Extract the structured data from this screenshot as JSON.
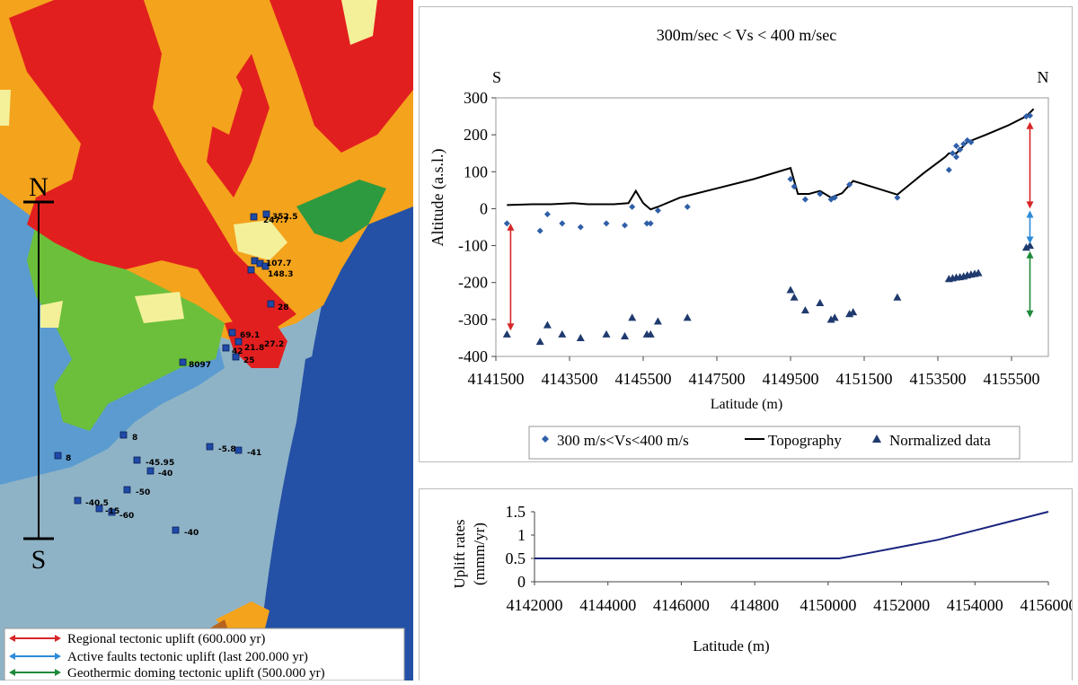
{
  "map": {
    "compass_north": "N",
    "compass_south": "S",
    "station_labels": [
      {
        "id": "s1",
        "text": "352.5"
      },
      {
        "id": "s2",
        "text": "247.7"
      },
      {
        "id": "s3",
        "text": "107.7"
      },
      {
        "id": "s4",
        "text": "148.3"
      },
      {
        "id": "s5",
        "text": "28"
      },
      {
        "id": "s6",
        "text": "69.1"
      },
      {
        "id": "s7",
        "text": "27.2"
      },
      {
        "id": "s8",
        "text": "21.8"
      },
      {
        "id": "s9",
        "text": "42"
      },
      {
        "id": "s10",
        "text": "25"
      },
      {
        "id": "s11",
        "text": "8097"
      },
      {
        "id": "s12",
        "text": "8"
      },
      {
        "id": "s13",
        "text": "8"
      },
      {
        "id": "s14",
        "text": "-5.8"
      },
      {
        "id": "s15",
        "text": "-41"
      },
      {
        "id": "s16",
        "text": "-45.95"
      },
      {
        "id": "s17",
        "text": "-40"
      },
      {
        "id": "s18",
        "text": "-50"
      },
      {
        "id": "s19",
        "text": "-40.5"
      },
      {
        "id": "s20",
        "text": "-15"
      },
      {
        "id": "s21",
        "text": "-60"
      },
      {
        "id": "s22",
        "text": "-40"
      }
    ],
    "legend": [
      {
        "label": "Regional tectonic uplift (600.000 yr)",
        "color": "#d62728"
      },
      {
        "label": "Active faults tectonic uplift (last 200.000 yr)",
        "color": "#2e8bd8"
      },
      {
        "label": "Geothermic doming tectonic uplift (500.000 yr)",
        "color": "#1f8a3a"
      }
    ],
    "colors": {
      "sea": "#8fb3c6",
      "deep_sea": "#2451a6",
      "red": "#e21f1f",
      "orange": "#f4a31c",
      "blue_unit": "#5b9bd0",
      "green": "#6cbf3a",
      "pale": "#f4f09a",
      "station": "#1f4aa8"
    }
  },
  "chart_data": [
    {
      "type": "scatter",
      "title": "300m/sec < Vs < 400 m/sec",
      "corner_left": "S",
      "corner_right": "N",
      "xlabel": "Latitude (m)",
      "ylabel": "Altitude (a.s.l.)",
      "xlim": [
        4141500,
        4156500
      ],
      "ylim": [
        -400,
        300
      ],
      "xticks": [
        4141500,
        4143500,
        4145500,
        4147500,
        4149500,
        4151500,
        4153500,
        4155500
      ],
      "yticks": [
        -400,
        -300,
        -200,
        -100,
        0,
        100,
        200,
        300
      ],
      "series": [
        {
          "name": "300 m/s<Vs<400 m/s",
          "marker": "diamond",
          "color": "#2f5fa8",
          "points": [
            [
              4141800,
              -40
            ],
            [
              4142700,
              -60
            ],
            [
              4142900,
              -15
            ],
            [
              4143300,
              -40
            ],
            [
              4143800,
              -50
            ],
            [
              4144500,
              -40
            ],
            [
              4145000,
              -45
            ],
            [
              4145200,
              5
            ],
            [
              4145600,
              -40
            ],
            [
              4145700,
              -40
            ],
            [
              4145900,
              -5
            ],
            [
              4146700,
              5
            ],
            [
              4149500,
              80
            ],
            [
              4149600,
              60
            ],
            [
              4149900,
              25
            ],
            [
              4150300,
              40
            ],
            [
              4150600,
              25
            ],
            [
              4150700,
              30
            ],
            [
              4151100,
              65
            ],
            [
              4152400,
              30
            ],
            [
              4153800,
              105
            ],
            [
              4153900,
              150
            ],
            [
              4154000,
              170
            ],
            [
              4154100,
              160
            ],
            [
              4154200,
              175
            ],
            [
              4154300,
              185
            ],
            [
              4154400,
              180
            ],
            [
              4154000,
              140
            ],
            [
              4155900,
              250
            ],
            [
              4156000,
              252
            ]
          ]
        },
        {
          "name": "Topography",
          "marker": "line",
          "color": "#000000",
          "points": [
            [
              4141800,
              10
            ],
            [
              4142500,
              12
            ],
            [
              4143000,
              12
            ],
            [
              4143600,
              15
            ],
            [
              4144000,
              12
            ],
            [
              4144700,
              12
            ],
            [
              4145100,
              15
            ],
            [
              4145300,
              48
            ],
            [
              4145500,
              15
            ],
            [
              4145700,
              -2
            ],
            [
              4145900,
              5
            ],
            [
              4146500,
              30
            ],
            [
              4147500,
              55
            ],
            [
              4148500,
              80
            ],
            [
              4149500,
              110
            ],
            [
              4149700,
              40
            ],
            [
              4150000,
              40
            ],
            [
              4150300,
              48
            ],
            [
              4150600,
              30
            ],
            [
              4150900,
              42
            ],
            [
              4151200,
              75
            ],
            [
              4152400,
              38
            ],
            [
              4153100,
              95
            ],
            [
              4153700,
              140
            ],
            [
              4153800,
              150
            ],
            [
              4154000,
              150
            ],
            [
              4154300,
              180
            ],
            [
              4154800,
              200
            ],
            [
              4155400,
              225
            ],
            [
              4155900,
              250
            ],
            [
              4156100,
              270
            ]
          ]
        },
        {
          "name": "Normalized data",
          "marker": "triangle",
          "color": "#1f3a6e",
          "points": [
            [
              4141800,
              -340
            ],
            [
              4142700,
              -360
            ],
            [
              4142900,
              -315
            ],
            [
              4143300,
              -340
            ],
            [
              4143800,
              -350
            ],
            [
              4144500,
              -340
            ],
            [
              4145000,
              -345
            ],
            [
              4145200,
              -295
            ],
            [
              4145600,
              -340
            ],
            [
              4145700,
              -340
            ],
            [
              4145900,
              -305
            ],
            [
              4146700,
              -295
            ],
            [
              4149500,
              -220
            ],
            [
              4149600,
              -240
            ],
            [
              4149900,
              -275
            ],
            [
              4150300,
              -255
            ],
            [
              4150600,
              -300
            ],
            [
              4150700,
              -295
            ],
            [
              4151100,
              -285
            ],
            [
              4151200,
              -280
            ],
            [
              4152400,
              -240
            ],
            [
              4153800,
              -190
            ],
            [
              4153900,
              -188
            ],
            [
              4154000,
              -186
            ],
            [
              4154100,
              -185
            ],
            [
              4154200,
              -183
            ],
            [
              4154300,
              -180
            ],
            [
              4154400,
              -178
            ],
            [
              4154500,
              -176
            ],
            [
              4154600,
              -174
            ],
            [
              4155900,
              -105
            ],
            [
              4156000,
              -100
            ]
          ]
        }
      ],
      "uplift_arrows": [
        {
          "color": "#d62728",
          "lat": 4141900,
          "from": -40,
          "to": -330
        },
        {
          "color": "#d62728",
          "lat": 4156000,
          "from": 235,
          "to": 0
        },
        {
          "color": "#2e8bd8",
          "lat": 4156000,
          "from": -5,
          "to": -95
        },
        {
          "color": "#1f8a3a",
          "lat": 4156000,
          "from": -115,
          "to": -295
        }
      ]
    },
    {
      "type": "line",
      "title": "",
      "xlabel": "Latitude (m)",
      "ylabel_lines": [
        "Uplift rates",
        "(mmm/yr)"
      ],
      "xtick_labels": [
        "4142000",
        "4144000",
        "4146000",
        "414800",
        "4150000",
        "4152000",
        "4154000",
        "4156000"
      ],
      "yticks": [
        0,
        0.5,
        1,
        1.5
      ],
      "ylim": [
        0,
        1.5
      ],
      "color": "#1a237e",
      "x": [
        4142000,
        4144000,
        4146000,
        4148000,
        4150000,
        4150300,
        4151000,
        4152000,
        4153000,
        4154000,
        4155000,
        4156000
      ],
      "y": [
        0.5,
        0.5,
        0.5,
        0.5,
        0.5,
        0.5,
        0.6,
        0.75,
        0.9,
        1.1,
        1.3,
        1.5
      ]
    }
  ]
}
